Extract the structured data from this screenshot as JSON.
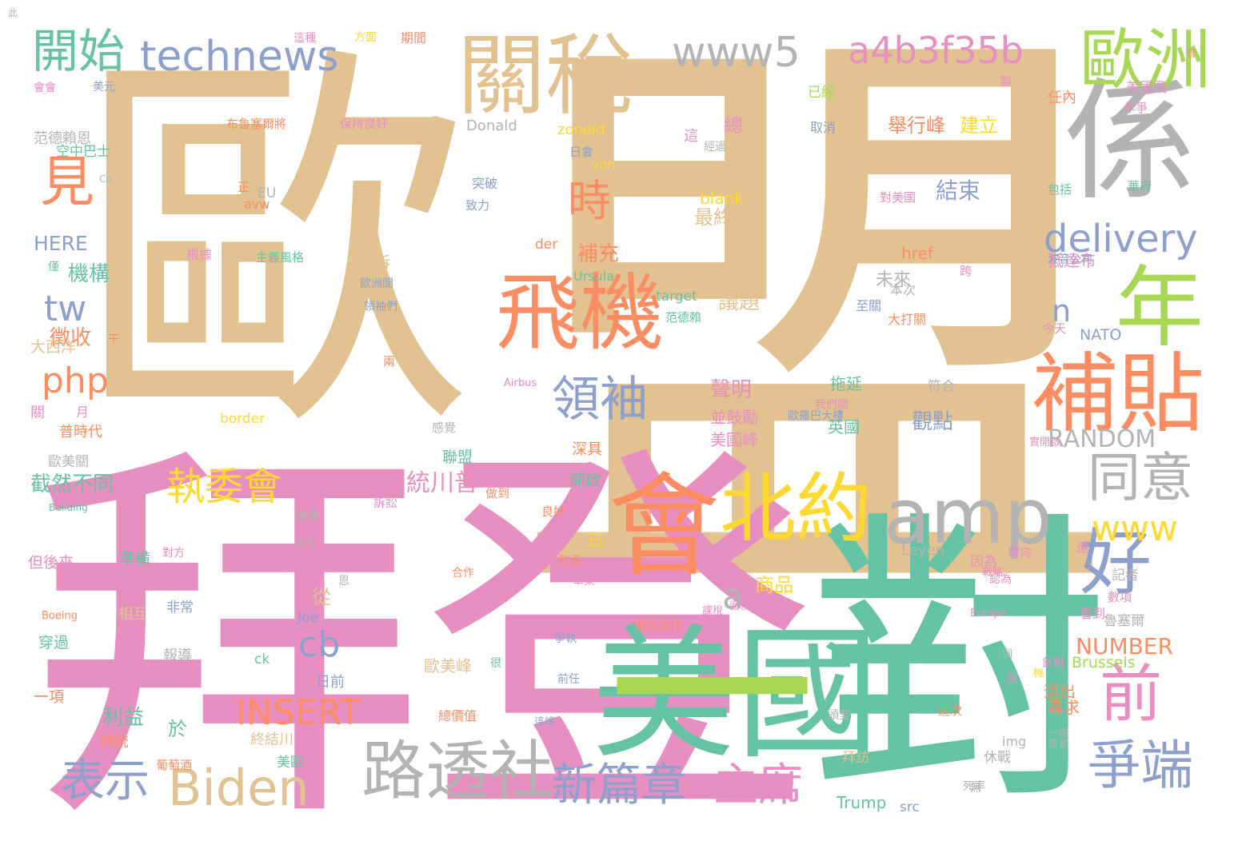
{
  "colors": {
    "tan": "#e2c290",
    "pink": "#e88fc2",
    "teal": "#66c2a5",
    "orange": "#fc8d62",
    "blue": "#8da0cb",
    "gray": "#b3b3b3",
    "green": "#a6d854",
    "yellow": "#ffd92f"
  },
  "words": [
    {
      "text": "歐",
      "color": "tan"
    },
    {
      "text": "盟",
      "color": "tan"
    },
    {
      "text": "拜登",
      "color": "pink"
    },
    {
      "text": "對",
      "color": "teal"
    },
    {
      "text": "美國",
      "color": "teal"
    },
    {
      "text": "會",
      "color": "orange"
    },
    {
      "text": "一",
      "color": "green"
    },
    {
      "text": "係",
      "color": "gray"
    },
    {
      "text": "關稅",
      "color": "tan"
    },
    {
      "text": "歐洲",
      "color": "green"
    },
    {
      "text": "年",
      "color": "green"
    },
    {
      "text": "補貼",
      "color": "orange"
    },
    {
      "text": "飛機",
      "color": "orange"
    },
    {
      "text": "北約",
      "color": "yellow"
    },
    {
      "text": "amp",
      "color": "gray"
    },
    {
      "text": "好",
      "color": "blue"
    },
    {
      "text": "前",
      "color": "pink"
    },
    {
      "text": "同意",
      "color": "gray"
    },
    {
      "text": "爭端",
      "color": "blue"
    },
    {
      "text": "路透社",
      "color": "gray"
    },
    {
      "text": "Biden",
      "color": "tan"
    },
    {
      "text": "表示",
      "color": "blue"
    },
    {
      "text": "新篇章",
      "color": "blue"
    },
    {
      "text": "主席",
      "color": "pink"
    },
    {
      "text": "www5",
      "color": "gray"
    },
    {
      "text": "a4b3f35b",
      "color": "pink"
    },
    {
      "text": "technews",
      "color": "blue"
    },
    {
      "text": "開始",
      "color": "teal"
    },
    {
      "text": "見",
      "color": "orange"
    },
    {
      "text": "時",
      "color": "orange"
    },
    {
      "text": "領袖",
      "color": "blue"
    },
    {
      "text": "delivery",
      "color": "blue"
    },
    {
      "text": "執委會",
      "color": "yellow"
    },
    {
      "text": "www",
      "color": "yellow"
    },
    {
      "text": "INSERT",
      "color": "orange"
    },
    {
      "text": "cb",
      "color": "blue"
    },
    {
      "text": "php",
      "color": "orange"
    },
    {
      "text": "tw",
      "color": "blue"
    },
    {
      "text": "a",
      "color": "gray"
    },
    {
      "text": "n",
      "color": "blue"
    },
    {
      "text": "RANDOM",
      "color": "gray"
    },
    {
      "text": "NUMBER",
      "color": "orange"
    },
    {
      "text": "統川普",
      "color": "pink"
    },
    {
      "text": "結束",
      "color": "blue"
    },
    {
      "text": "補充",
      "color": "orange"
    },
    {
      "text": "議題",
      "color": "tan"
    },
    {
      "text": "聲明",
      "color": "pink"
    },
    {
      "text": "觀點",
      "color": "blue"
    },
    {
      "text": "徵收",
      "color": "orange"
    },
    {
      "text": "機構",
      "color": "teal"
    },
    {
      "text": "截然不同",
      "color": "teal"
    },
    {
      "text": "利益",
      "color": "teal"
    },
    {
      "text": "HERE",
      "color": "blue"
    },
    {
      "text": "未來",
      "color": "gray"
    },
    {
      "text": "最終",
      "color": "tan"
    },
    {
      "text": "總",
      "color": "pink"
    },
    {
      "text": "舉行峰",
      "color": "orange"
    },
    {
      "text": "建立",
      "color": "yellow"
    },
    {
      "text": "商品",
      "color": "yellow"
    },
    {
      "text": "從",
      "color": "tan"
    },
    {
      "text": "於",
      "color": "teal"
    },
    {
      "text": "Brussels",
      "color": "green"
    },
    {
      "text": "拖延",
      "color": "teal"
    },
    {
      "text": "英國",
      "color": "teal"
    },
    {
      "text": "並鼓勵",
      "color": "pink"
    },
    {
      "text": "美國峰",
      "color": "pink"
    },
    {
      "text": "深具",
      "color": "orange"
    },
    {
      "text": "聯盟",
      "color": "teal"
    },
    {
      "text": "開啟",
      "color": "teal"
    },
    {
      "text": "貿易戰",
      "color": "pink"
    },
    {
      "text": "歐美峰",
      "color": "tan"
    },
    {
      "text": "退出",
      "color": "orange"
    },
    {
      "text": "尋求",
      "color": "orange"
    },
    {
      "text": "抵達布",
      "color": "pink"
    },
    {
      "text": "NATO",
      "color": "blue"
    },
    {
      "text": "Donald",
      "color": "gray"
    },
    {
      "text": "zoneid",
      "color": "yellow"
    },
    {
      "text": "von",
      "color": "yellow"
    },
    {
      "text": "blank",
      "color": "yellow"
    },
    {
      "text": "Ursula",
      "color": "teal"
    },
    {
      "text": "target",
      "color": "teal"
    },
    {
      "text": "href",
      "color": "orange"
    },
    {
      "text": "der",
      "color": "orange"
    },
    {
      "text": "Leyen",
      "color": "gray"
    },
    {
      "text": "alt",
      "color": "gray"
    },
    {
      "text": "Joe",
      "color": "blue"
    },
    {
      "text": "ck",
      "color": "teal"
    },
    {
      "text": "border",
      "color": "yellow"
    },
    {
      "text": "EU",
      "color": "gray"
    },
    {
      "text": "avw",
      "color": "orange"
    },
    {
      "text": "img",
      "color": "gray"
    },
    {
      "text": "Trump",
      "color": "teal"
    },
    {
      "text": "src",
      "color": "blue"
    },
    {
      "text": "Airbus",
      "color": "pink"
    },
    {
      "text": "Boeing",
      "color": "orange"
    },
    {
      "text": "Europe",
      "color": "pink"
    },
    {
      "text": "Building",
      "color": "teal"
    },
    {
      "text": "Co",
      "color": "gray"
    },
    {
      "text": "大西洋",
      "color": "tan"
    },
    {
      "text": "范德賴恩",
      "color": "gray"
    },
    {
      "text": "空中巴士",
      "color": "teal"
    },
    {
      "text": "普時代",
      "color": "orange"
    },
    {
      "text": "歐美關",
      "color": "gray"
    },
    {
      "text": "但後來",
      "color": "pink"
    },
    {
      "text": "準備",
      "color": "teal"
    },
    {
      "text": "穿過",
      "color": "teal"
    },
    {
      "text": "一項",
      "color": "orange"
    },
    {
      "text": "總統",
      "color": "orange"
    },
    {
      "text": "相互",
      "color": "tan"
    },
    {
      "text": "報導",
      "color": "gray"
    },
    {
      "text": "非常",
      "color": "blue"
    },
    {
      "text": "日前",
      "color": "blue"
    },
    {
      "text": "終結川",
      "color": "tan"
    },
    {
      "text": "美歐",
      "color": "teal"
    },
    {
      "text": "葡萄酒",
      "color": "orange"
    },
    {
      "text": "告訴",
      "color": "tan"
    },
    {
      "text": "主義風格",
      "color": "teal"
    },
    {
      "text": "根據",
      "color": "pink"
    },
    {
      "text": "布魯塞爾將",
      "color": "orange"
    },
    {
      "text": "保持良好",
      "color": "pink"
    },
    {
      "text": "突破",
      "color": "blue"
    },
    {
      "text": "致力",
      "color": "blue"
    },
    {
      "text": "日會",
      "color": "blue"
    },
    {
      "text": "任內",
      "color": "orange"
    },
    {
      "text": "美國飛",
      "color": "pink"
    },
    {
      "text": "年爭",
      "color": "pink"
    },
    {
      "text": "已經",
      "color": "green"
    },
    {
      "text": "取消",
      "color": "blue"
    },
    {
      "text": "對美國",
      "color": "pink"
    },
    {
      "text": "包括",
      "color": "teal"
    },
    {
      "text": "華府",
      "color": "teal"
    },
    {
      "text": "波音公司",
      "color": "blue"
    },
    {
      "text": "至關",
      "color": "blue"
    },
    {
      "text": "本次",
      "color": "gray"
    },
    {
      "text": "大打關",
      "color": "orange"
    },
    {
      "text": "今天",
      "color": "pink"
    },
    {
      "text": "符合",
      "color": "gray"
    },
    {
      "text": "因為",
      "color": "pink"
    },
    {
      "text": "認為",
      "color": "pink"
    },
    {
      "text": "轉向",
      "color": "pink"
    },
    {
      "text": "記者",
      "color": "gray"
    },
    {
      "text": "看到",
      "color": "pink"
    },
    {
      "text": "數項",
      "color": "pink"
    },
    {
      "text": "魯塞爾",
      "color": "gray"
    },
    {
      "text": "針對",
      "color": "pink"
    },
    {
      "text": "一場",
      "color": "gray"
    },
    {
      "text": "重要",
      "color": "gray"
    },
    {
      "text": "休戰",
      "color": "gray"
    },
    {
      "text": "拜訪",
      "color": "tan"
    },
    {
      "text": "歐羅巴大樓",
      "color": "blue"
    },
    {
      "text": "我們關",
      "color": "pink"
    },
    {
      "text": "感覺",
      "color": "gray"
    },
    {
      "text": "訴訟",
      "color": "pink"
    },
    {
      "text": "做到",
      "color": "orange"
    },
    {
      "text": "良好",
      "color": "orange"
    },
    {
      "text": "密切合作",
      "color": "orange"
    },
    {
      "text": "面後說",
      "color": "pink"
    },
    {
      "text": "爭執",
      "color": "blue"
    },
    {
      "text": "前任",
      "color": "blue"
    },
    {
      "text": "總價值",
      "color": "orange"
    },
    {
      "text": "這峰",
      "color": "blue"
    },
    {
      "text": "這次",
      "color": "orange"
    },
    {
      "text": "頭室",
      "color": "gray"
    },
    {
      "text": "方面",
      "color": "yellow"
    },
    {
      "text": "期間",
      "color": "orange"
    },
    {
      "text": "美元",
      "color": "blue"
    },
    {
      "text": "會會",
      "color": "pink"
    },
    {
      "text": "歐洲間",
      "color": "blue"
    },
    {
      "text": "領袖們",
      "color": "blue"
    },
    {
      "text": "范德賴",
      "color": "teal"
    },
    {
      "text": "關",
      "color": "pink"
    },
    {
      "text": "月",
      "color": "pink"
    },
    {
      "text": "正",
      "color": "orange"
    },
    {
      "text": "這",
      "color": "pink"
    },
    {
      "text": "已",
      "color": "yellow"
    },
    {
      "text": "恩",
      "color": "gray"
    },
    {
      "text": "很",
      "color": "teal"
    },
    {
      "text": "說",
      "color": "pink"
    },
    {
      "text": "還",
      "color": "pink"
    },
    {
      "text": "跨",
      "color": "pink"
    },
    {
      "text": "兩",
      "color": "orange"
    },
    {
      "text": "干",
      "color": "orange"
    },
    {
      "text": "僅",
      "color": "teal"
    },
    {
      "text": "個",
      "color": "gray"
    },
    {
      "text": "機",
      "color": "yellow"
    },
    {
      "text": "曾",
      "color": "orange"
    },
    {
      "text": "製",
      "color": "pink"
    },
    {
      "text": "這種",
      "color": "pink"
    },
    {
      "text": "烈酒",
      "color": "orange"
    },
    {
      "text": "草案",
      "color": "pink"
    },
    {
      "text": "課稅",
      "color": "pink"
    },
    {
      "text": "對方",
      "color": "pink"
    },
    {
      "text": "合作",
      "color": "orange"
    },
    {
      "text": "機會",
      "color": "gray"
    },
    {
      "text": "經過",
      "color": "gray"
    },
    {
      "text": "戰略",
      "color": "pink"
    },
    {
      "text": "實開啟",
      "color": "pink"
    },
    {
      "text": "死率",
      "color": "gray"
    },
    {
      "text": "無",
      "color": "gray"
    },
    {
      "text": "此",
      "color": "gray"
    }
  ]
}
